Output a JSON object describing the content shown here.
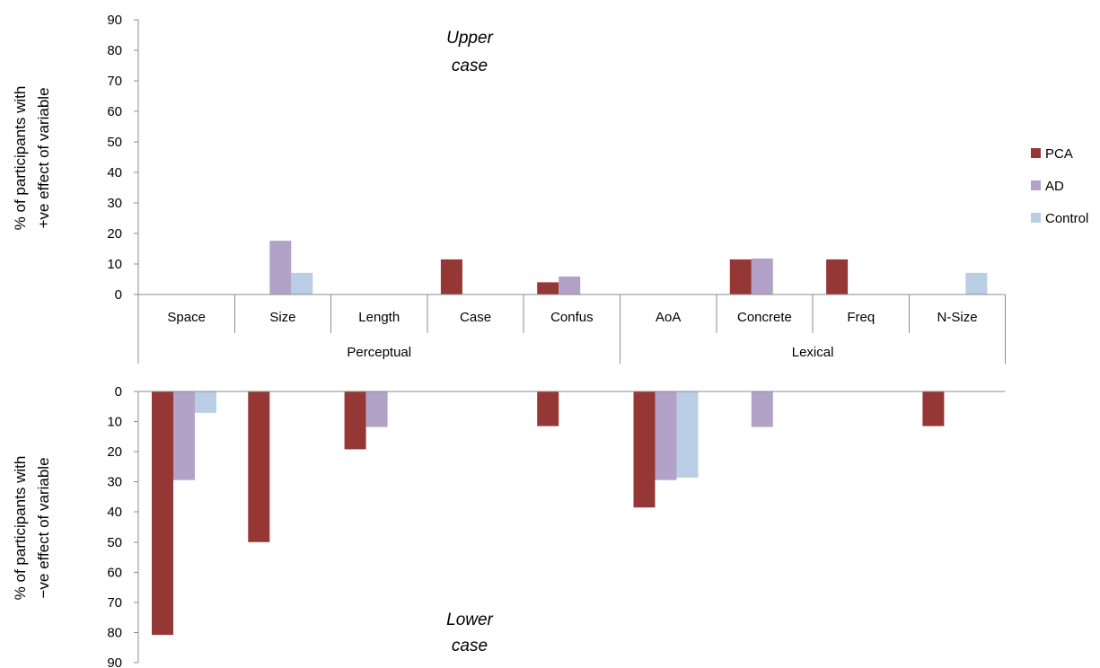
{
  "chart_data": [
    {
      "type": "bar",
      "panel": "upper",
      "categories": [
        "Space",
        "Size",
        "Length",
        "Case",
        "Confus",
        "AoA",
        "Concrete",
        "Freq",
        "N-Size"
      ],
      "groups": [
        {
          "label": "Perceptual",
          "categories": [
            "Space",
            "Size",
            "Length",
            "Case",
            "Confus"
          ]
        },
        {
          "label": "Lexical",
          "categories": [
            "AoA",
            "Concrete",
            "Freq",
            "N-Size"
          ]
        }
      ],
      "series": [
        {
          "name": "PCA",
          "color": "#953735",
          "values": [
            0,
            0,
            0,
            11.5,
            4,
            0,
            11.5,
            11.5,
            0
          ]
        },
        {
          "name": "AD",
          "color": "#b3a2c7",
          "values": [
            0,
            17.6,
            0,
            0,
            5.9,
            0,
            11.8,
            0,
            0
          ]
        },
        {
          "name": "Control",
          "color": "#b9cde5",
          "values": [
            0,
            7.1,
            0,
            0,
            0,
            0,
            0,
            0,
            7.1
          ]
        }
      ],
      "ylim": [
        0,
        90
      ],
      "yticks": [
        "0",
        "10",
        "20",
        "30",
        "40",
        "50",
        "60",
        "70",
        "80",
        "90"
      ],
      "ylabel": [
        "% of participants with",
        "+ve effect of variable"
      ],
      "annotation": [
        "Upper",
        "case"
      ]
    },
    {
      "type": "bar",
      "panel": "lower",
      "orientation": "downward",
      "categories": [
        "Space",
        "Size",
        "Length",
        "Case",
        "Confus",
        "AoA",
        "Concrete",
        "Freq",
        "N-Size"
      ],
      "series": [
        {
          "name": "PCA",
          "color": "#953735",
          "values": [
            80.8,
            50,
            19.2,
            0,
            11.5,
            38.5,
            0,
            0,
            11.5
          ]
        },
        {
          "name": "AD",
          "color": "#b3a2c7",
          "values": [
            29.4,
            0,
            11.8,
            0,
            0,
            29.4,
            11.8,
            0,
            0
          ]
        },
        {
          "name": "Control",
          "color": "#b9cde5",
          "values": [
            7.1,
            0,
            0,
            0,
            0,
            28.6,
            0,
            0,
            0
          ]
        }
      ],
      "ylim": [
        0,
        90
      ],
      "yticks": [
        "0",
        "10",
        "20",
        "30",
        "40",
        "50",
        "60",
        "70",
        "80",
        "90"
      ],
      "ylabel": [
        "% of participants with",
        "−ve effect of variable"
      ],
      "annotation": [
        "Lower",
        "case"
      ]
    }
  ],
  "legend": {
    "position": "right",
    "items": [
      {
        "name": "PCA",
        "color": "#953735"
      },
      {
        "name": "AD",
        "color": "#b3a2c7"
      },
      {
        "name": "Control",
        "color": "#b9cde5"
      }
    ]
  }
}
